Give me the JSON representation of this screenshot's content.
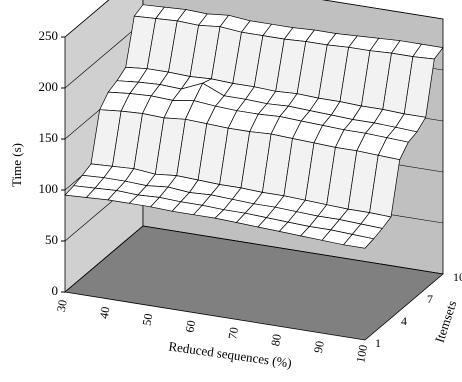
{
  "chart_data": {
    "type": "surface3d",
    "zlabel": "Time (s)",
    "xlabel": "Reduced sequences (%)",
    "ylabel": "Itemsets",
    "categories": [
      30,
      null,
      40,
      null,
      50,
      null,
      60,
      null,
      70,
      null,
      80,
      null,
      90,
      null,
      100
    ],
    "depth_categories": [
      1,
      null,
      null,
      4,
      null,
      null,
      7,
      null,
      null,
      10
    ],
    "zlim": [
      0,
      250
    ],
    "zticks": [
      0,
      50,
      100,
      150,
      200,
      250
    ],
    "surface_color": "#ffffff",
    "wall_color": "#c0c0c0",
    "floor_color": "#808080",
    "grid": true,
    "values": [
      [
        95,
        96,
        97,
        97,
        97,
        96,
        96,
        96,
        95,
        94,
        93,
        92,
        91,
        90,
        90
      ],
      [
        97,
        98,
        99,
        98,
        99,
        98,
        98,
        97,
        97,
        96,
        95,
        94,
        94,
        93,
        92
      ],
      [
        100,
        101,
        101,
        100,
        102,
        100,
        101,
        100,
        99,
        99,
        98,
        97,
        97,
        96,
        95
      ],
      [
        104,
        105,
        106,
        104,
        106,
        105,
        104,
        104,
        103,
        103,
        102,
        101,
        100,
        100,
        99
      ],
      [
        150,
        152,
        153,
        152,
        154,
        153,
        152,
        152,
        153,
        152,
        151,
        150,
        150,
        149,
        148
      ],
      [
        160,
        162,
        163,
        162,
        165,
        163,
        162,
        162,
        163,
        162,
        161,
        160,
        160,
        159,
        158
      ],
      [
        164,
        166,
        167,
        166,
        175,
        166,
        166,
        165,
        166,
        165,
        164,
        163,
        163,
        162,
        161
      ],
      [
        170,
        172,
        172,
        171,
        172,
        171,
        171,
        170,
        171,
        170,
        170,
        169,
        169,
        168,
        168
      ],
      [
        213,
        214,
        215,
        214,
        216,
        214,
        214,
        214,
        215,
        215,
        216,
        216,
        217,
        217,
        218
      ],
      [
        217,
        218,
        219,
        218,
        220,
        218,
        218,
        218,
        219,
        219,
        220,
        221,
        222,
        222,
        222
      ]
    ]
  }
}
